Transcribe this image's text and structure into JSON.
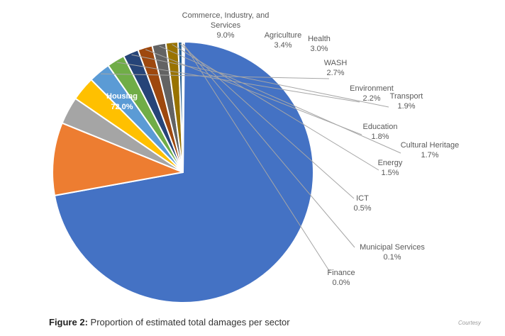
{
  "chart_data": {
    "type": "pie",
    "slices": [
      {
        "label": "Housing",
        "value_label": "72.0%",
        "value": 72.0,
        "color": "#4472C4"
      },
      {
        "label": "Commerce, Industry, and Services",
        "value_label": "9.0%",
        "value": 9.0,
        "color": "#ED7D31"
      },
      {
        "label": "Agriculture",
        "value_label": "3.4%",
        "value": 3.4,
        "color": "#A5A5A5"
      },
      {
        "label": "Health",
        "value_label": "3.0%",
        "value": 3.0,
        "color": "#FFC000"
      },
      {
        "label": "WASH",
        "value_label": "2.7%",
        "value": 2.7,
        "color": "#5B9BD5"
      },
      {
        "label": "Environment",
        "value_label": "2.2%",
        "value": 2.2,
        "color": "#70AD47"
      },
      {
        "label": "Transport",
        "value_label": "1.9%",
        "value": 1.9,
        "color": "#264478"
      },
      {
        "label": "Education",
        "value_label": "1.8%",
        "value": 1.8,
        "color": "#9E480E"
      },
      {
        "label": "Cultural Heritage",
        "value_label": "1.7%",
        "value": 1.7,
        "color": "#636363"
      },
      {
        "label": "Energy",
        "value_label": "1.5%",
        "value": 1.5,
        "color": "#997300"
      },
      {
        "label": "ICT",
        "value_label": "0.5%",
        "value": 0.5,
        "color": "#255E91"
      },
      {
        "label": "Municipal Services",
        "value_label": "0.1%",
        "value": 0.1,
        "color": "#43682B"
      },
      {
        "label": "Finance",
        "value_label": "0.0%",
        "value": 0.0,
        "color": "#698ED0"
      }
    ],
    "start_angle_deg": 0,
    "direction": "clockwise",
    "legend": "none"
  },
  "caption": {
    "prefix": "Figure 2:",
    "text": " Proportion of estimated total damages per sector"
  },
  "credit": "Courtesy"
}
